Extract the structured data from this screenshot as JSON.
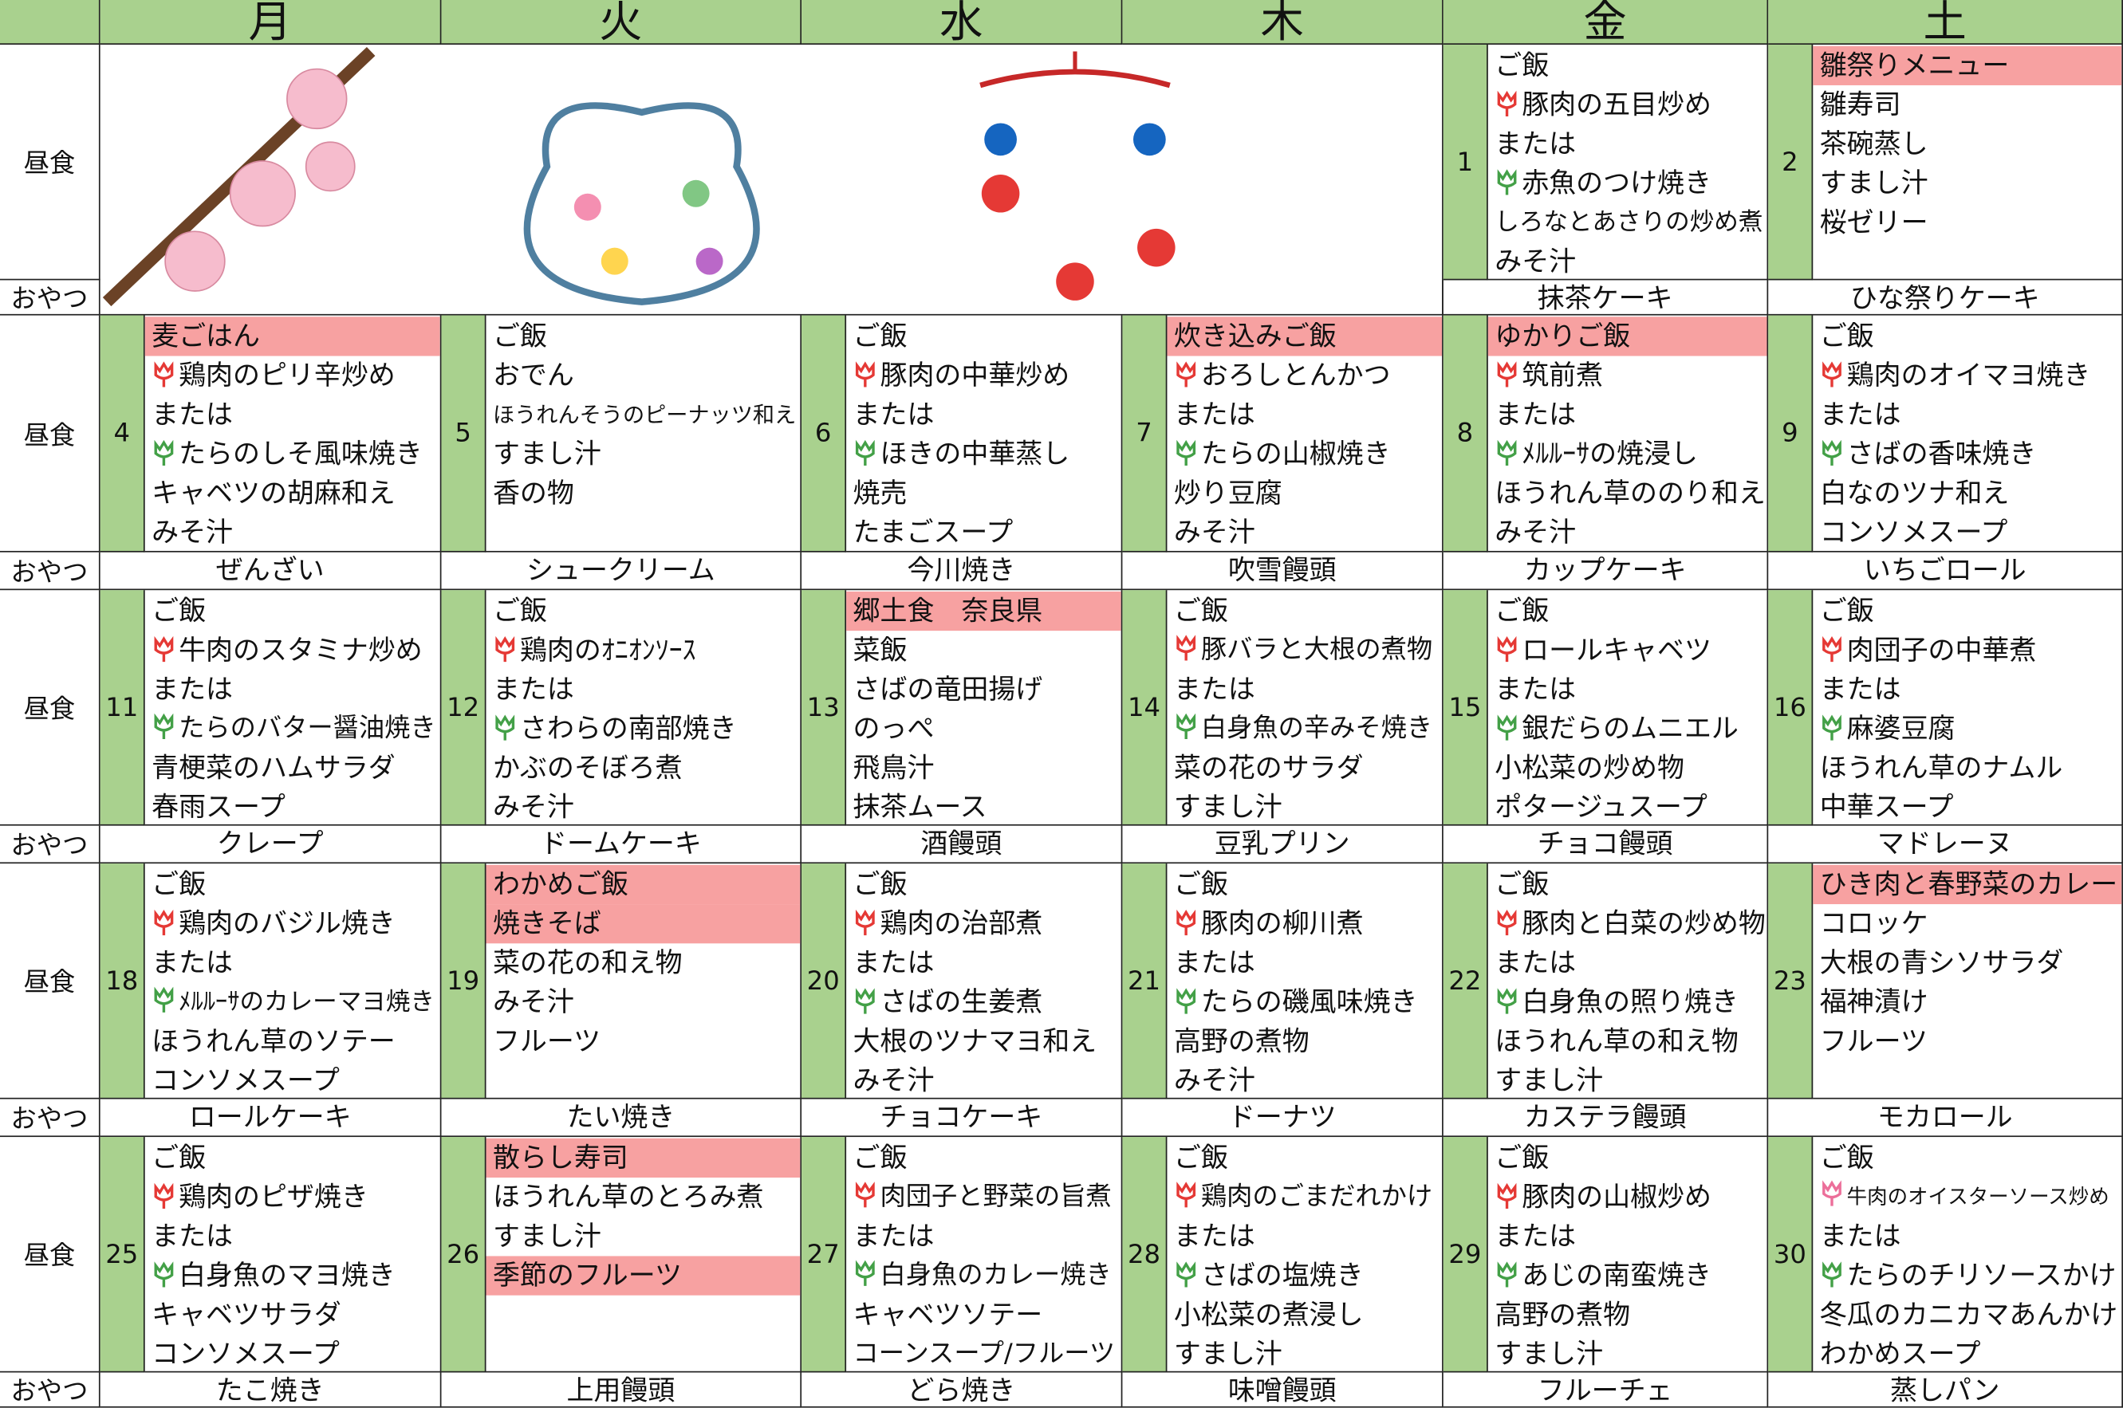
{
  "header": {
    "days": [
      "月",
      "火",
      "水",
      "木",
      "金",
      "土"
    ]
  },
  "labels": {
    "lunch": "昼食",
    "snack": "おやつ"
  },
  "weeks": [
    {
      "days": [
        null,
        null,
        null,
        null,
        {
          "date": "1",
          "lines": [
            {
              "text": "ご飯"
            },
            {
              "text": "豚肉の五目炒め",
              "icon": "red"
            },
            {
              "text": "または"
            },
            {
              "text": "赤魚のつけ焼き",
              "icon": "green"
            },
            {
              "text": "しろなとあさりの炒め煮"
            },
            {
              "text": "みそ汁"
            }
          ],
          "snack": "抹茶ケーキ"
        },
        {
          "date": "2",
          "lines": [
            {
              "text": "雛祭りメニュー",
              "style": "highlight"
            },
            {
              "text": "雛寿司"
            },
            {
              "text": "茶碗蒸し"
            },
            {
              "text": "すまし汁"
            },
            {
              "text": "桜ゼリー"
            }
          ],
          "snack": "ひな祭りケーキ"
        }
      ]
    },
    {
      "days": [
        {
          "date": "4",
          "lines": [
            {
              "text": "麦ごはん",
              "style": "highlight"
            },
            {
              "text": "鶏肉のピリ辛炒め",
              "icon": "red"
            },
            {
              "text": "または"
            },
            {
              "text": "たらのしそ風味焼き",
              "icon": "green"
            },
            {
              "text": "キャベツの胡麻和え"
            },
            {
              "text": "みそ汁"
            }
          ],
          "snack": "ぜんざい"
        },
        {
          "date": "5",
          "lines": [
            {
              "text": "ご飯"
            },
            {
              "text": "おでん"
            },
            {
              "text": "ほうれんそうのピーナッツ和え"
            },
            {
              "text": "すまし汁"
            },
            {
              "text": "香の物"
            }
          ],
          "snack": "シュークリーム"
        },
        {
          "date": "6",
          "lines": [
            {
              "text": "ご飯"
            },
            {
              "text": "豚肉の中華炒め",
              "icon": "red"
            },
            {
              "text": "または"
            },
            {
              "text": "ほきの中華蒸し",
              "icon": "green"
            },
            {
              "text": "焼売"
            },
            {
              "text": "たまごスープ"
            }
          ],
          "snack": "今川焼き"
        },
        {
          "date": "7",
          "lines": [
            {
              "text": "炊き込みご飯",
              "style": "highlight"
            },
            {
              "text": "おろしとんかつ",
              "icon": "red"
            },
            {
              "text": "または"
            },
            {
              "text": "たらの山椒焼き",
              "icon": "green"
            },
            {
              "text": "炒り豆腐"
            },
            {
              "text": "みそ汁"
            }
          ],
          "snack": "吹雪饅頭"
        },
        {
          "date": "8",
          "lines": [
            {
              "text": "ゆかりご飯",
              "style": "highlight"
            },
            {
              "text": "筑前煮",
              "icon": "red"
            },
            {
              "text": "または"
            },
            {
              "text": "ﾒﾙﾙｰｻの焼浸し",
              "icon": "green"
            },
            {
              "text": "ほうれん草ののり和え"
            },
            {
              "text": "みそ汁"
            }
          ],
          "snack": "カップケーキ"
        },
        {
          "date": "9",
          "lines": [
            {
              "text": "ご飯"
            },
            {
              "text": "鶏肉のオイマヨ焼き",
              "icon": "red"
            },
            {
              "text": "または"
            },
            {
              "text": "さばの香味焼き",
              "icon": "green"
            },
            {
              "text": "白なのツナ和え"
            },
            {
              "text": "コンソメスープ"
            }
          ],
          "snack": "いちごロール"
        }
      ]
    },
    {
      "days": [
        {
          "date": "11",
          "lines": [
            {
              "text": "ご飯"
            },
            {
              "text": "牛肉のスタミナ炒め",
              "icon": "red"
            },
            {
              "text": "または"
            },
            {
              "text": "たらのバター醤油焼き",
              "icon": "green"
            },
            {
              "text": "青梗菜のハムサラダ"
            },
            {
              "text": "春雨スープ"
            }
          ],
          "snack": "クレープ"
        },
        {
          "date": "12",
          "lines": [
            {
              "text": "ご飯"
            },
            {
              "text": "鶏肉のｵﾆｵﾝｿｰｽ",
              "icon": "red"
            },
            {
              "text": "または"
            },
            {
              "text": "さわらの南部焼き",
              "icon": "green"
            },
            {
              "text": "かぶのそぼろ煮"
            },
            {
              "text": "みそ汁"
            }
          ],
          "snack": "ドームケーキ"
        },
        {
          "date": "13",
          "lines": [
            {
              "text": "郷土食　奈良県",
              "style": "highlight"
            },
            {
              "text": "菜飯"
            },
            {
              "text": "さばの竜田揚げ"
            },
            {
              "text": "のっぺ"
            },
            {
              "text": "飛鳥汁"
            },
            {
              "text": "抹茶ムース"
            }
          ],
          "snack": "酒饅頭"
        },
        {
          "date": "14",
          "lines": [
            {
              "text": "ご飯"
            },
            {
              "text": "豚バラと大根の煮物",
              "icon": "red"
            },
            {
              "text": "または"
            },
            {
              "text": "白身魚の辛みそ焼き",
              "icon": "green"
            },
            {
              "text": "菜の花のサラダ"
            },
            {
              "text": "すまし汁"
            }
          ],
          "snack": "豆乳プリン"
        },
        {
          "date": "15",
          "lines": [
            {
              "text": "ご飯"
            },
            {
              "text": "ロールキャベツ",
              "icon": "red"
            },
            {
              "text": "または"
            },
            {
              "text": "銀だらのムニエル",
              "icon": "green"
            },
            {
              "text": "小松菜の炒め物"
            },
            {
              "text": "ポタージュスープ"
            }
          ],
          "snack": "チョコ饅頭"
        },
        {
          "date": "16",
          "lines": [
            {
              "text": "ご飯"
            },
            {
              "text": "肉団子の中華煮",
              "icon": "red"
            },
            {
              "text": "または"
            },
            {
              "text": "麻婆豆腐",
              "icon": "green"
            },
            {
              "text": "ほうれん草のナムル"
            },
            {
              "text": "中華スープ"
            }
          ],
          "snack": "マドレーヌ"
        }
      ]
    },
    {
      "days": [
        {
          "date": "18",
          "lines": [
            {
              "text": "ご飯"
            },
            {
              "text": "鶏肉のバジル焼き",
              "icon": "red"
            },
            {
              "text": "または"
            },
            {
              "text": "ﾒﾙﾙｰｻのカレーマヨ焼き",
              "icon": "green"
            },
            {
              "text": "ほうれん草のソテー"
            },
            {
              "text": "コンソメスープ"
            }
          ],
          "snack": "ロールケーキ"
        },
        {
          "date": "19",
          "lines": [
            {
              "text": "わかめご飯",
              "style": "highlight"
            },
            {
              "text": "焼きそば",
              "style": "highlight"
            },
            {
              "text": "菜の花の和え物"
            },
            {
              "text": "みそ汁"
            },
            {
              "text": "フルーツ"
            }
          ],
          "snack": "たい焼き"
        },
        {
          "date": "20",
          "lines": [
            {
              "text": "ご飯"
            },
            {
              "text": "鶏肉の治部煮",
              "icon": "red"
            },
            {
              "text": "または"
            },
            {
              "text": "さばの生姜煮",
              "icon": "green"
            },
            {
              "text": "大根のツナマヨ和え"
            },
            {
              "text": "みそ汁"
            }
          ],
          "snack": "チョコケーキ"
        },
        {
          "date": "21",
          "lines": [
            {
              "text": "ご飯"
            },
            {
              "text": "豚肉の柳川煮",
              "icon": "red"
            },
            {
              "text": "または"
            },
            {
              "text": "たらの磯風味焼き",
              "icon": "green"
            },
            {
              "text": "高野の煮物"
            },
            {
              "text": "みそ汁"
            }
          ],
          "snack": "ドーナツ"
        },
        {
          "date": "22",
          "lines": [
            {
              "text": "ご飯"
            },
            {
              "text": "豚肉と白菜の炒め物",
              "icon": "red"
            },
            {
              "text": "または"
            },
            {
              "text": "白身魚の照り焼き",
              "icon": "green"
            },
            {
              "text": "ほうれん草の和え物"
            },
            {
              "text": "すまし汁"
            }
          ],
          "snack": "カステラ饅頭"
        },
        {
          "date": "23",
          "lines": [
            {
              "text": "ひき肉と春野菜のカレー",
              "style": "highlight"
            },
            {
              "text": "コロッケ"
            },
            {
              "text": "大根の青シソサラダ"
            },
            {
              "text": "福神漬け"
            },
            {
              "text": "フルーツ"
            }
          ],
          "snack": "モカロール"
        }
      ]
    },
    {
      "days": [
        {
          "date": "25",
          "lines": [
            {
              "text": "ご飯"
            },
            {
              "text": "鶏肉のピザ焼き",
              "icon": "red"
            },
            {
              "text": "または"
            },
            {
              "text": "白身魚のマヨ焼き",
              "icon": "green"
            },
            {
              "text": "キャベツサラダ"
            },
            {
              "text": "コンソメスープ"
            }
          ],
          "snack": "たこ焼き"
        },
        {
          "date": "26",
          "lines": [
            {
              "text": "散らし寿司",
              "style": "highlight"
            },
            {
              "text": "ほうれん草のとろみ煮"
            },
            {
              "text": "すまし汁"
            },
            {
              "text": "季節のフルーツ",
              "style": "highlight"
            }
          ],
          "snack": "上用饅頭"
        },
        {
          "date": "27",
          "lines": [
            {
              "text": "ご飯"
            },
            {
              "text": "肉団子と野菜の旨煮",
              "icon": "red"
            },
            {
              "text": "または"
            },
            {
              "text": "白身魚のカレー焼き",
              "icon": "green"
            },
            {
              "text": "キャベツソテー"
            },
            {
              "text": "コーンスープ/フルーツ"
            }
          ],
          "snack": "どら焼き"
        },
        {
          "date": "28",
          "lines": [
            {
              "text": "ご飯"
            },
            {
              "text": "鶏肉のごまだれかけ",
              "icon": "red"
            },
            {
              "text": "または"
            },
            {
              "text": "さばの塩焼き",
              "icon": "green"
            },
            {
              "text": "小松菜の煮浸し"
            },
            {
              "text": "すまし汁"
            }
          ],
          "snack": "味噌饅頭"
        },
        {
          "date": "29",
          "lines": [
            {
              "text": "ご飯"
            },
            {
              "text": "豚肉の山椒炒め",
              "icon": "red"
            },
            {
              "text": "または"
            },
            {
              "text": "あじの南蛮焼き",
              "icon": "green"
            },
            {
              "text": "高野の煮物"
            },
            {
              "text": "すまし汁"
            }
          ],
          "snack": "フルーチェ"
        },
        {
          "date": "30",
          "lines": [
            {
              "text": "ご飯"
            },
            {
              "text": "牛肉のオイスターソース炒め",
              "icon": "pink"
            },
            {
              "text": "または"
            },
            {
              "text": "たらのチリソースかけ",
              "icon": "green"
            },
            {
              "text": "冬瓜のカニカマあんかけ"
            },
            {
              "text": "わかめスープ"
            }
          ],
          "snack": "蒸しパン"
        }
      ]
    }
  ]
}
